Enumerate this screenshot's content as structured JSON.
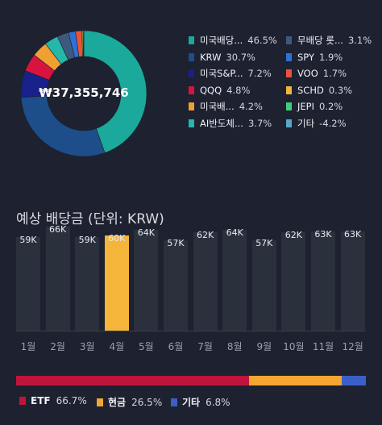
{
  "portfolio": {
    "total": "₩37,355,746",
    "holdings": [
      {
        "name": "미국배당...",
        "pct": "46.5%",
        "value": 46.5,
        "color": "#1aa99a"
      },
      {
        "name": "KRW",
        "pct": "30.7%",
        "value": 30.7,
        "color": "#1d4e89"
      },
      {
        "name": "미국S&P...",
        "pct": "7.2%",
        "value": 7.2,
        "color": "#18208a"
      },
      {
        "name": "QQQ",
        "pct": "4.8%",
        "value": 4.8,
        "color": "#d8143e"
      },
      {
        "name": "미국배...",
        "pct": "4.2%",
        "value": 4.2,
        "color": "#f0a030"
      },
      {
        "name": "AI반도체...",
        "pct": "3.7%",
        "value": 3.7,
        "color": "#26b7a8"
      },
      {
        "name": "무배당 롯...",
        "pct": "3.1%",
        "value": 3.1,
        "color": "#3c5a7e"
      },
      {
        "name": "SPY",
        "pct": "1.9%",
        "value": 1.9,
        "color": "#2f6fd6"
      },
      {
        "name": "VOO",
        "pct": "1.7%",
        "value": 1.7,
        "color": "#e8543a"
      },
      {
        "name": "SCHD",
        "pct": "0.3%",
        "value": 0.3,
        "color": "#f2b53c"
      },
      {
        "name": "JEPI",
        "pct": "0.2%",
        "value": 0.2,
        "color": "#3fcf7a"
      },
      {
        "name": "기타",
        "pct": "-4.2%",
        "value": -4.2,
        "color": "#5aa6c8"
      }
    ]
  },
  "dividends": {
    "title": "예상 배당금 (단위: KRW)",
    "highlight_index": 3,
    "colors": {
      "bar": "#2b303d",
      "highlight": "#f5b53b"
    },
    "chart_data": {
      "type": "bar",
      "categories": [
        "1월",
        "2월",
        "3월",
        "4월",
        "5월",
        "6월",
        "7월",
        "8월",
        "9월",
        "10월",
        "11월",
        "12월"
      ],
      "values": [
        59,
        66,
        59,
        60,
        64,
        57,
        62,
        64,
        57,
        62,
        63,
        63
      ],
      "labels": [
        "59K",
        "66K",
        "59K",
        "60K",
        "64K",
        "57K",
        "62K",
        "64K",
        "57K",
        "62K",
        "63K",
        "63K"
      ],
      "ylim": [
        0,
        70
      ]
    }
  },
  "allocation": [
    {
      "name": "ETF",
      "pct": "66.7%",
      "value": 66.7,
      "color": "#c0143c"
    },
    {
      "name": "현금",
      "pct": "26.5%",
      "value": 26.5,
      "color": "#f5a531"
    },
    {
      "name": "기타",
      "pct": "6.8%",
      "value": 6.8,
      "color": "#3b5fc9"
    }
  ]
}
